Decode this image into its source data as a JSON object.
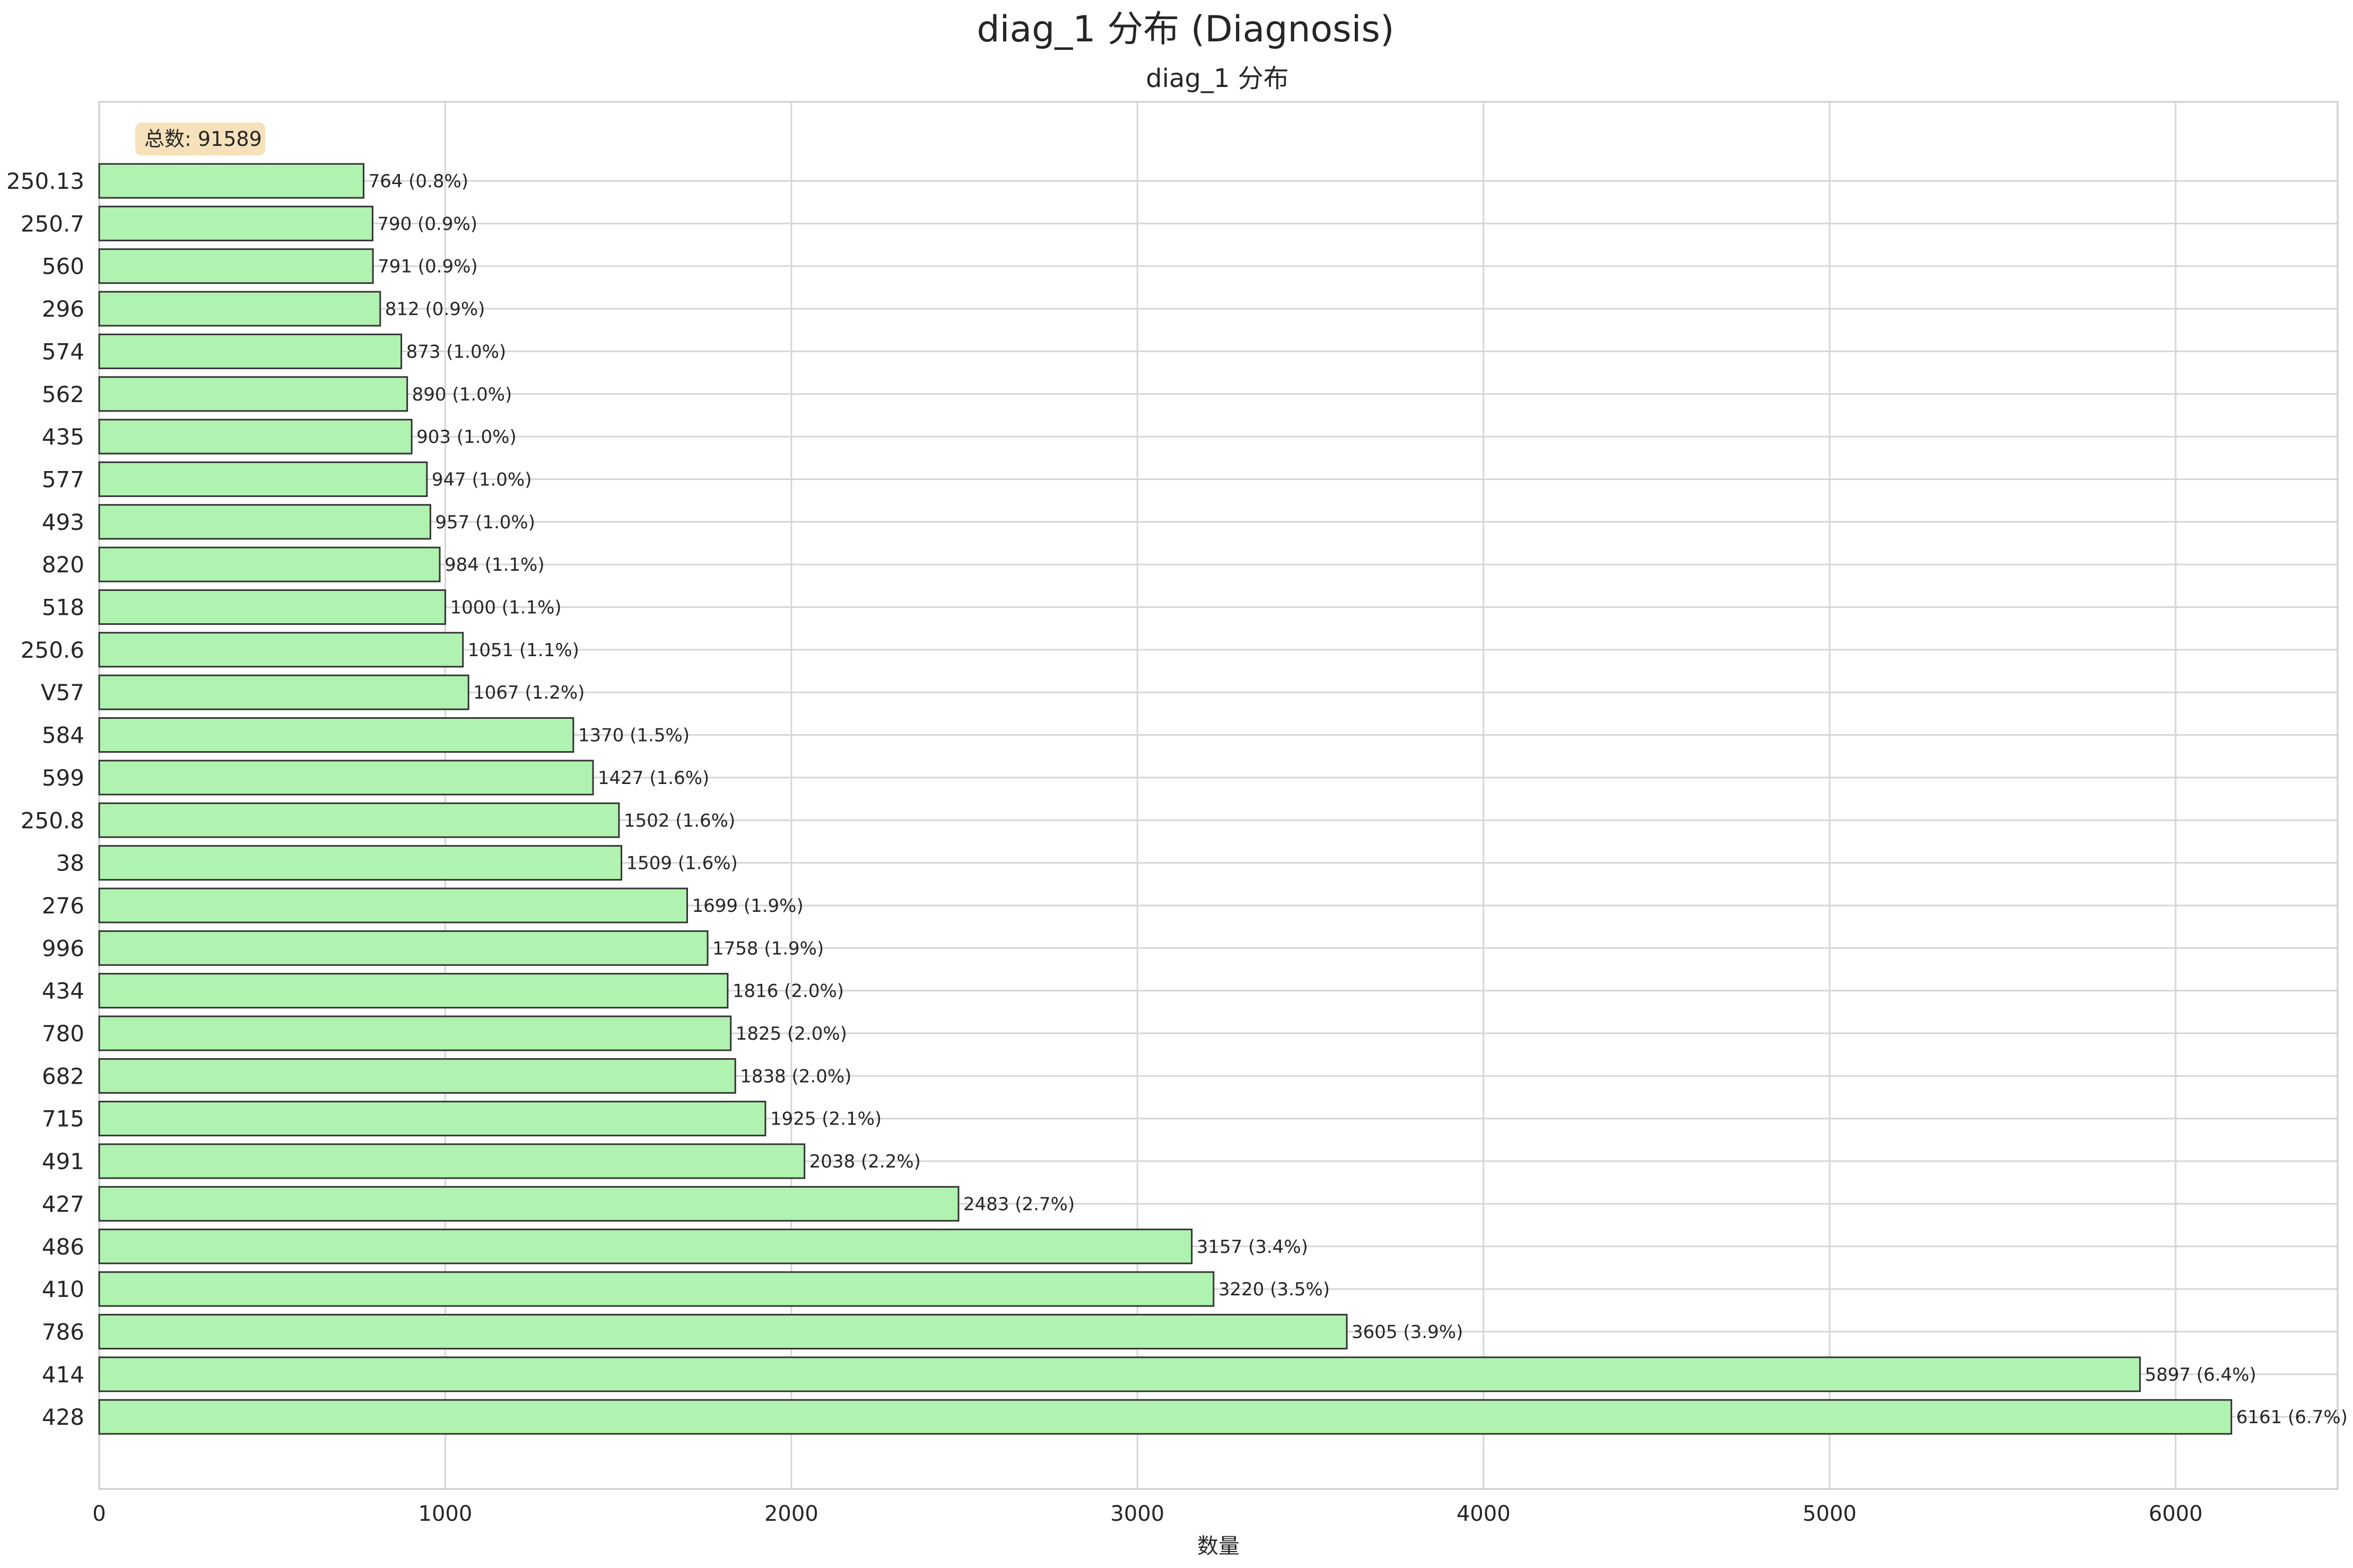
{
  "figure": {
    "suptitle": "diag_1 分布 (Diagnosis)"
  },
  "chart_data": {
    "type": "bar",
    "orientation": "horizontal",
    "title": "diag_1 分布",
    "xlabel": "数量",
    "ylabel": "",
    "xlim": [
      0,
      6468
    ],
    "xticks": [
      0,
      1000,
      2000,
      3000,
      4000,
      5000,
      6000
    ],
    "grid": true,
    "bar_color": "#b0f2b0",
    "bar_edge_color": "#333333",
    "annotation": "总数: 91589",
    "annotation_bg": "#f5deb3",
    "categories": [
      "250.13",
      "250.7",
      "560",
      "296",
      "574",
      "562",
      "435",
      "577",
      "493",
      "820",
      "518",
      "250.6",
      "V57",
      "584",
      "599",
      "250.8",
      "38",
      "276",
      "996",
      "434",
      "780",
      "682",
      "715",
      "491",
      "427",
      "486",
      "410",
      "786",
      "414",
      "428"
    ],
    "values": [
      764,
      790,
      791,
      812,
      873,
      890,
      903,
      947,
      957,
      984,
      1000,
      1051,
      1067,
      1370,
      1427,
      1502,
      1509,
      1699,
      1758,
      1816,
      1825,
      1838,
      1925,
      2038,
      2483,
      3157,
      3220,
      3605,
      5897,
      6161
    ],
    "labels": [
      "764 (0.8%)",
      "790 (0.9%)",
      "791 (0.9%)",
      "812 (0.9%)",
      "873 (1.0%)",
      "890 (1.0%)",
      "903 (1.0%)",
      "947 (1.0%)",
      "957 (1.0%)",
      "984 (1.1%)",
      "1000 (1.1%)",
      "1051 (1.1%)",
      "1067 (1.2%)",
      "1370 (1.5%)",
      "1427 (1.6%)",
      "1502 (1.6%)",
      "1509 (1.6%)",
      "1699 (1.9%)",
      "1758 (1.9%)",
      "1816 (2.0%)",
      "1825 (2.0%)",
      "1838 (2.0%)",
      "1925 (2.1%)",
      "2038 (2.2%)",
      "2483 (2.7%)",
      "3157 (3.4%)",
      "3220 (3.5%)",
      "3605 (3.9%)",
      "5897 (6.4%)",
      "6161 (6.7%)"
    ]
  }
}
